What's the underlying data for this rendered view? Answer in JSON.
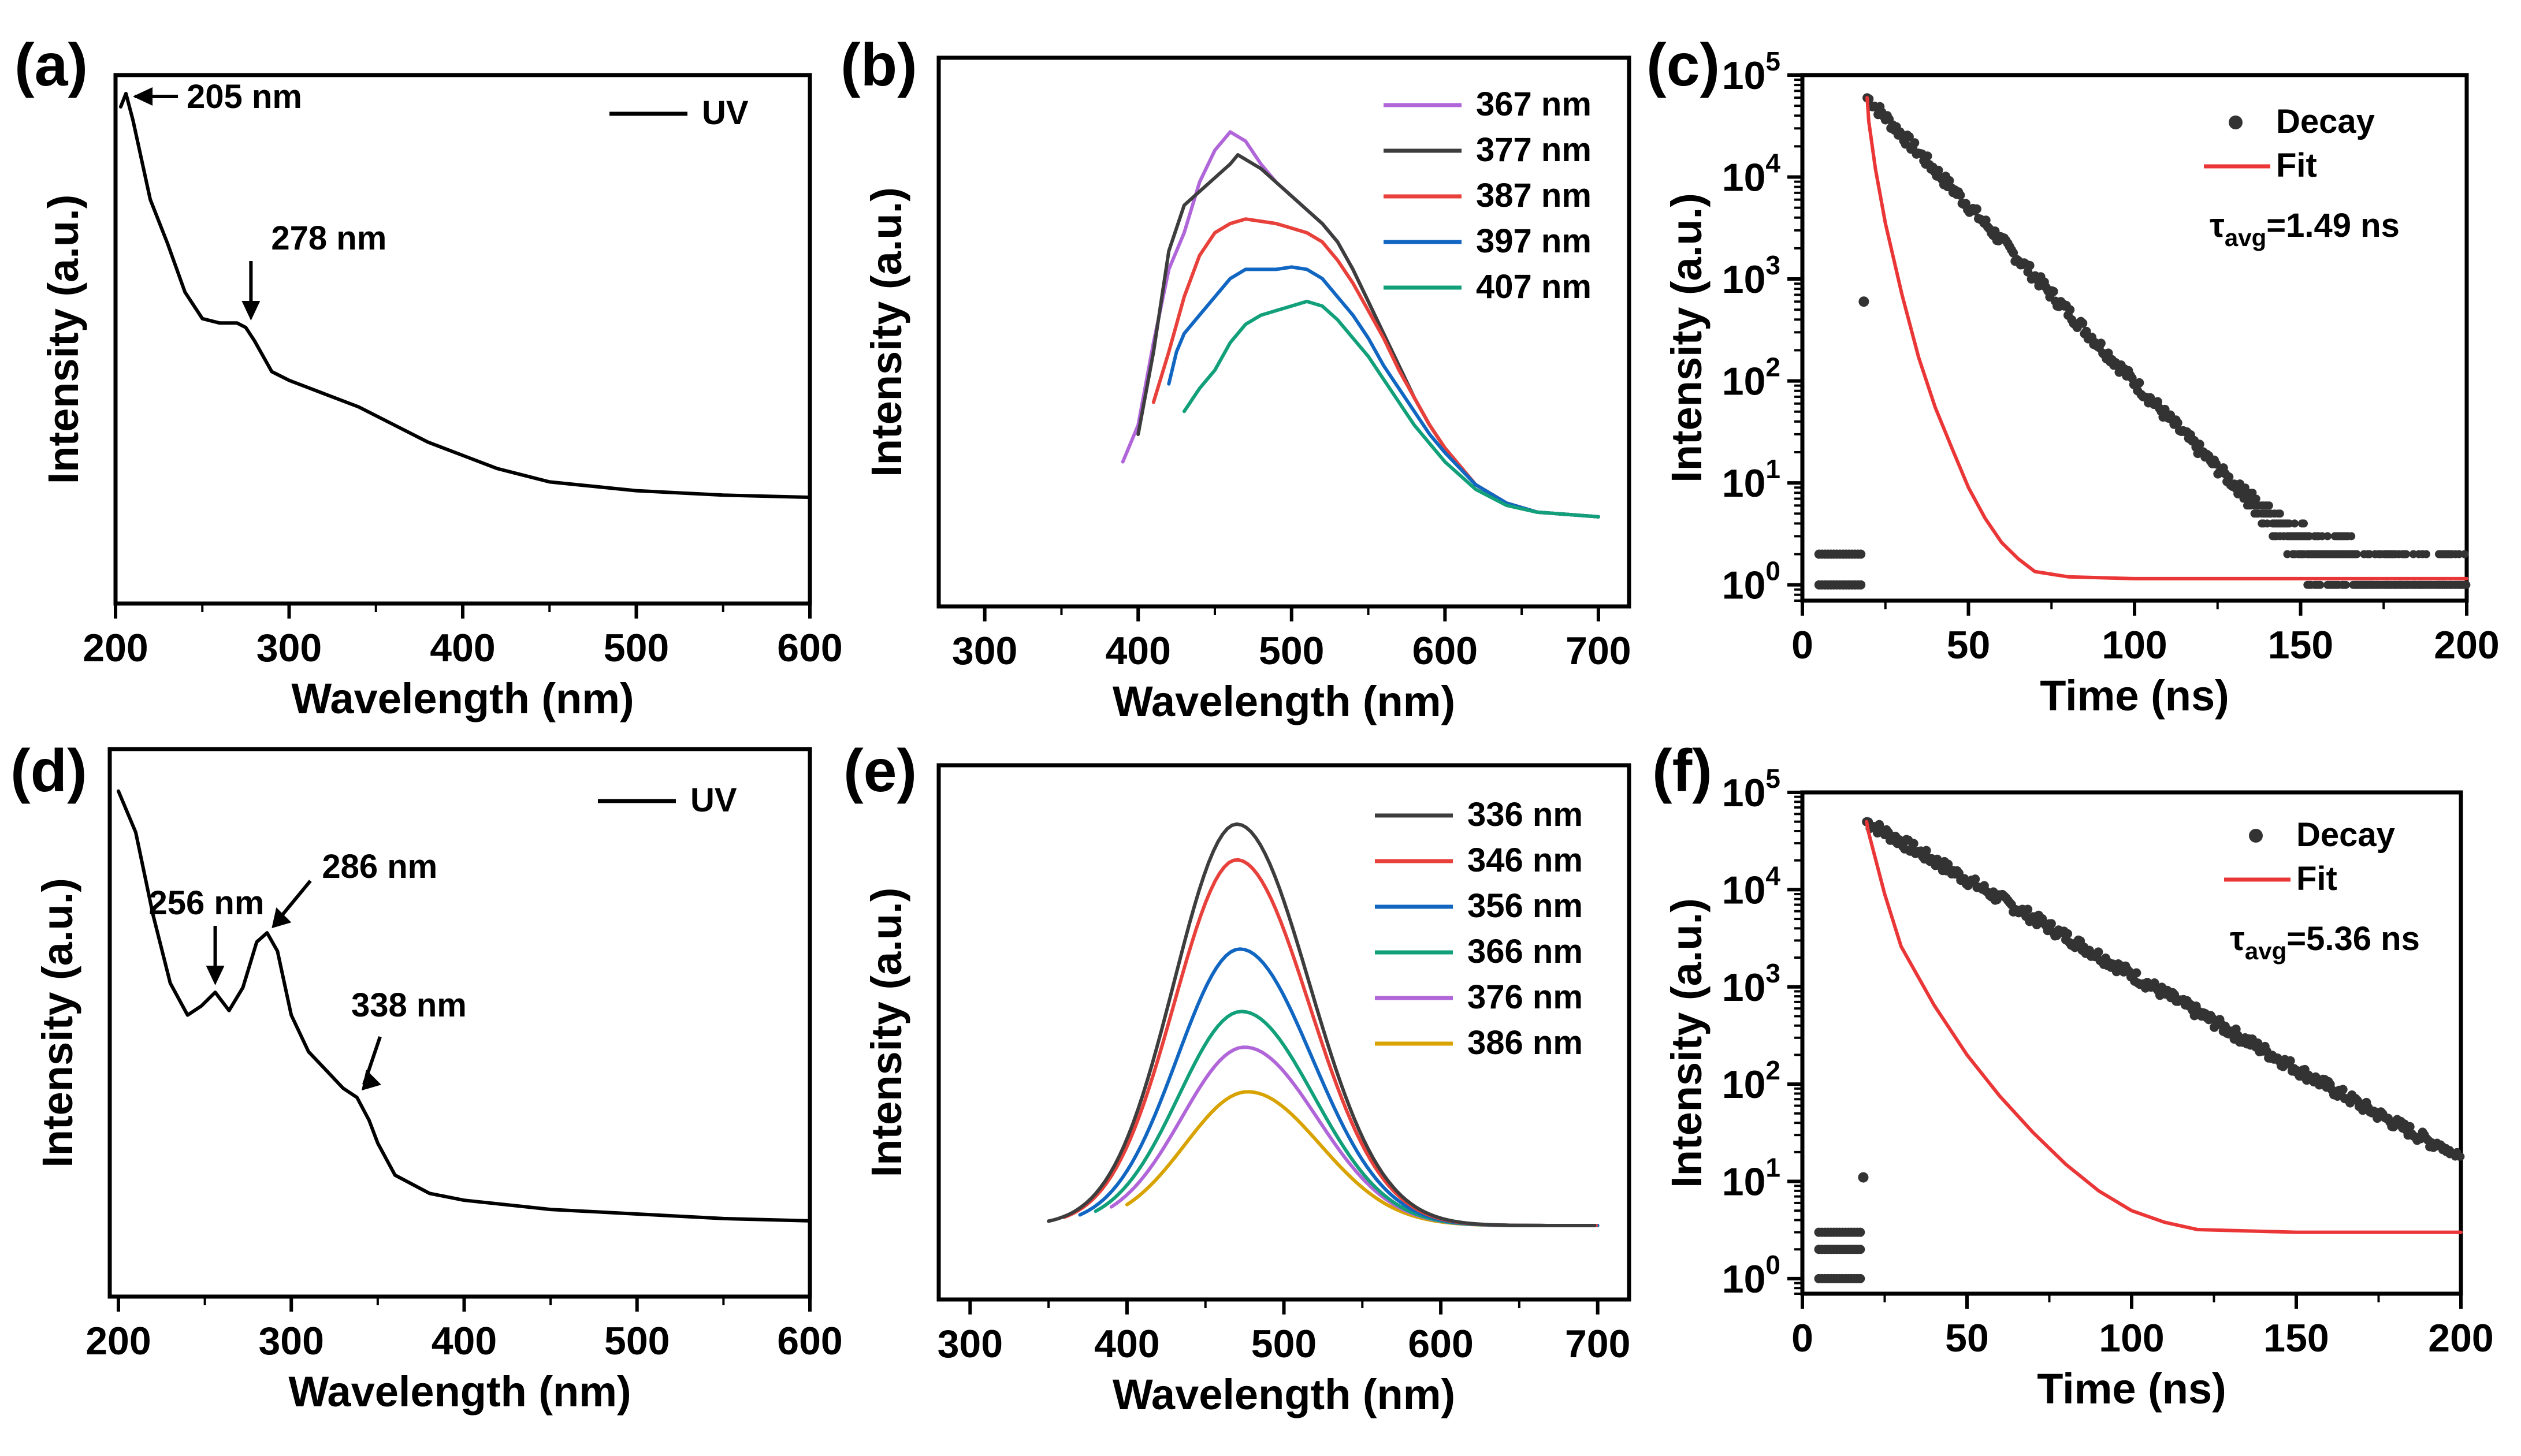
{
  "colors": {
    "uv": "#000000",
    "excitation": [
      "#b066d8",
      "#3d3d3d",
      "#e8403a",
      "#1166c2",
      "#12a07a",
      "#d8a300"
    ],
    "decay_marker": "#333333",
    "fit": "#ea3636"
  },
  "chart_data": [
    {
      "id": "a",
      "panel_label": "(a)",
      "type": "line",
      "xlabel": "Wavelength (nm)",
      "ylabel": "Intensity (a.u.)",
      "xlim": [
        200,
        600
      ],
      "xticks": [
        200,
        300,
        400,
        500,
        600
      ],
      "ylim": [
        0,
        1
      ],
      "legend": [
        {
          "name": "UV"
        }
      ],
      "series": [
        {
          "name": "UV",
          "x": [
            203,
            206,
            210,
            215,
            220,
            225,
            230,
            240,
            250,
            260,
            270,
            275,
            280,
            290,
            300,
            320,
            340,
            360,
            380,
            400,
            420,
            450,
            500,
            550,
            600
          ],
          "y": [
            0.97,
            1.0,
            0.94,
            0.85,
            0.76,
            0.71,
            0.66,
            0.55,
            0.49,
            0.48,
            0.48,
            0.47,
            0.44,
            0.37,
            0.35,
            0.32,
            0.29,
            0.25,
            0.21,
            0.18,
            0.15,
            0.12,
            0.1,
            0.09,
            0.085
          ]
        }
      ],
      "annotations": [
        {
          "text": "205 nm",
          "x": 206,
          "y": 1.0
        },
        {
          "text": "278 nm",
          "x": 278,
          "y": 0.47
        }
      ]
    },
    {
      "id": "b",
      "panel_label": "(b)",
      "type": "line",
      "xlabel": "Wavelength (nm)",
      "ylabel": "Intensity (a.u.)",
      "xlim": [
        270,
        720
      ],
      "xticks": [
        300,
        400,
        500,
        600,
        700
      ],
      "ylim": [
        0,
        1
      ],
      "legend": [
        {
          "name": "367 nm"
        },
        {
          "name": "377 nm"
        },
        {
          "name": "387 nm"
        },
        {
          "name": "397 nm"
        },
        {
          "name": "407 nm"
        }
      ],
      "series": [
        {
          "name": "367 nm",
          "x": [
            390,
            400,
            410,
            420,
            430,
            440,
            450,
            460,
            470,
            480,
            490,
            500,
            510,
            520,
            530,
            540,
            550,
            560,
            570,
            580,
            590,
            600,
            620,
            640,
            660,
            680,
            700
          ],
          "y": [
            0.16,
            0.24,
            0.42,
            0.58,
            0.66,
            0.77,
            0.84,
            0.88,
            0.86,
            0.81,
            0.77,
            0.74,
            0.71,
            0.68,
            0.64,
            0.58,
            0.51,
            0.44,
            0.37,
            0.3,
            0.24,
            0.19,
            0.11,
            0.07,
            0.05,
            0.045,
            0.04
          ]
        },
        {
          "name": "377 nm",
          "x": [
            400,
            410,
            420,
            430,
            440,
            450,
            460,
            465,
            470,
            480,
            490,
            500,
            510,
            520,
            530,
            540,
            550,
            560,
            570,
            580,
            590,
            600,
            620,
            640,
            660,
            680,
            700
          ],
          "y": [
            0.22,
            0.4,
            0.62,
            0.72,
            0.75,
            0.78,
            0.81,
            0.83,
            0.82,
            0.8,
            0.77,
            0.74,
            0.71,
            0.68,
            0.64,
            0.58,
            0.51,
            0.44,
            0.37,
            0.3,
            0.24,
            0.19,
            0.11,
            0.07,
            0.05,
            0.045,
            0.04
          ]
        },
        {
          "name": "387 nm",
          "x": [
            410,
            420,
            430,
            440,
            450,
            460,
            470,
            480,
            490,
            500,
            510,
            520,
            530,
            540,
            550,
            560,
            570,
            580,
            590,
            600,
            620,
            640,
            660,
            680,
            700
          ],
          "y": [
            0.29,
            0.4,
            0.52,
            0.61,
            0.66,
            0.68,
            0.69,
            0.685,
            0.68,
            0.67,
            0.66,
            0.64,
            0.6,
            0.55,
            0.49,
            0.43,
            0.36,
            0.3,
            0.24,
            0.19,
            0.11,
            0.07,
            0.05,
            0.045,
            0.04
          ]
        },
        {
          "name": "397 nm",
          "x": [
            420,
            425,
            430,
            440,
            450,
            460,
            470,
            480,
            490,
            500,
            510,
            520,
            530,
            540,
            550,
            560,
            570,
            580,
            590,
            600,
            620,
            640,
            660,
            680,
            700
          ],
          "y": [
            0.33,
            0.4,
            0.44,
            0.48,
            0.52,
            0.56,
            0.58,
            0.58,
            0.58,
            0.585,
            0.58,
            0.56,
            0.52,
            0.48,
            0.43,
            0.37,
            0.32,
            0.27,
            0.22,
            0.18,
            0.11,
            0.07,
            0.05,
            0.045,
            0.04
          ]
        },
        {
          "name": "407 nm",
          "x": [
            430,
            440,
            450,
            460,
            470,
            480,
            490,
            500,
            510,
            520,
            530,
            540,
            550,
            560,
            570,
            580,
            590,
            600,
            620,
            640,
            660,
            680,
            700
          ],
          "y": [
            0.27,
            0.32,
            0.36,
            0.42,
            0.46,
            0.48,
            0.49,
            0.5,
            0.51,
            0.5,
            0.47,
            0.43,
            0.39,
            0.34,
            0.29,
            0.24,
            0.2,
            0.16,
            0.1,
            0.065,
            0.05,
            0.045,
            0.04
          ]
        }
      ]
    },
    {
      "id": "c",
      "panel_label": "(c)",
      "type": "scatter",
      "yscale": "log",
      "xlabel": "Time (ns)",
      "ylabel": "Intensity (a.u.)",
      "xlim": [
        0,
        200
      ],
      "xticks": [
        0,
        50,
        100,
        150,
        200
      ],
      "ylim": [
        0.7,
        100000
      ],
      "ytick_values": [
        1,
        10,
        100,
        1000,
        10000,
        100000
      ],
      "yticks": [
        {
          "base": "10",
          "exp": "0"
        },
        {
          "base": "10",
          "exp": "1"
        },
        {
          "base": "10",
          "exp": "2"
        },
        {
          "base": "10",
          "exp": "3"
        },
        {
          "base": "10",
          "exp": "4"
        },
        {
          "base": "10",
          "exp": "5"
        }
      ],
      "legend": [
        {
          "name": "Decay"
        },
        {
          "name": "Fit"
        }
      ],
      "tau": {
        "symbol": "τ",
        "sub": "avg",
        "text": "=1.49 ns"
      },
      "decay": {
        "t0": 19.5,
        "peak": 60000,
        "fall": 0.08,
        "background": 1,
        "tau_ns": 1.49,
        "rise_start": 18.5,
        "rise_value": 600,
        "pre_counts": [
          1,
          2
        ]
      },
      "fit": {
        "x": [
          19.5,
          20,
          22,
          25,
          30,
          35,
          40,
          45,
          50,
          55,
          60,
          65,
          70,
          80,
          100,
          150,
          200
        ],
        "y": [
          60000,
          35000,
          12000,
          3500,
          700,
          170,
          55,
          22,
          9,
          4.5,
          2.6,
          1.8,
          1.35,
          1.2,
          1.15,
          1.15,
          1.15
        ]
      }
    },
    {
      "id": "d",
      "panel_label": "(d)",
      "type": "line",
      "xlabel": "Wavelength (nm)",
      "ylabel": "Intensity (a.u.)",
      "xlim": [
        195,
        600
      ],
      "xticks": [
        200,
        300,
        400,
        500,
        600
      ],
      "ylim": [
        0,
        1
      ],
      "legend": [
        {
          "name": "UV"
        }
      ],
      "series": [
        {
          "name": "UV",
          "x": [
            200,
            210,
            220,
            230,
            240,
            248,
            256,
            264,
            272,
            280,
            286,
            292,
            300,
            310,
            320,
            330,
            338,
            345,
            350,
            360,
            380,
            400,
            450,
            500,
            550,
            600
          ],
          "y": [
            0.95,
            0.86,
            0.68,
            0.53,
            0.46,
            0.48,
            0.51,
            0.47,
            0.52,
            0.62,
            0.64,
            0.6,
            0.46,
            0.38,
            0.34,
            0.3,
            0.28,
            0.23,
            0.18,
            0.11,
            0.07,
            0.055,
            0.035,
            0.025,
            0.015,
            0.01
          ]
        }
      ],
      "annotations": [
        {
          "text": "256 nm",
          "x": 256,
          "y": 0.51
        },
        {
          "text": "286 nm",
          "x": 286,
          "y": 0.64
        },
        {
          "text": "338 nm",
          "x": 338,
          "y": 0.28
        }
      ]
    },
    {
      "id": "e",
      "panel_label": "(e)",
      "type": "line",
      "xlabel": "Wavelength (nm)",
      "ylabel": "Intensity (a.u.)",
      "xlim": [
        280,
        720
      ],
      "xticks": [
        300,
        400,
        500,
        600,
        700
      ],
      "ylim": [
        0,
        1
      ],
      "legend": [
        {
          "name": "336 nm"
        },
        {
          "name": "346 nm"
        },
        {
          "name": "356 nm"
        },
        {
          "name": "366 nm"
        },
        {
          "name": "376 nm"
        },
        {
          "name": "386 nm"
        }
      ],
      "series": [
        {
          "name": "336 nm",
          "start": 350,
          "center": 470,
          "amplitude": 0.9,
          "width_left": 40,
          "width_right": 46
        },
        {
          "name": "346 nm",
          "start": 360,
          "center": 470,
          "amplitude": 0.82,
          "width_left": 40,
          "width_right": 46
        },
        {
          "name": "356 nm",
          "start": 370,
          "center": 472,
          "amplitude": 0.62,
          "width_left": 40,
          "width_right": 46
        },
        {
          "name": "366 nm",
          "start": 380,
          "center": 473,
          "amplitude": 0.48,
          "width_left": 40,
          "width_right": 46
        },
        {
          "name": "376 nm",
          "start": 390,
          "center": 475,
          "amplitude": 0.4,
          "width_left": 40,
          "width_right": 46
        },
        {
          "name": "386 nm",
          "start": 400,
          "center": 477,
          "amplitude": 0.3,
          "width_left": 40,
          "width_right": 46
        }
      ],
      "baseline": 0.01,
      "end": 700
    },
    {
      "id": "f",
      "panel_label": "(f)",
      "type": "scatter",
      "yscale": "log",
      "xlabel": "Time (ns)",
      "ylabel": "Intensity (a.u.)",
      "xlim": [
        0,
        200
      ],
      "xticks": [
        0,
        50,
        100,
        150,
        200
      ],
      "ylim": [
        0.7,
        100000
      ],
      "ytick_values": [
        1,
        10,
        100,
        1000,
        10000,
        100000
      ],
      "yticks": [
        {
          "base": "10",
          "exp": "0"
        },
        {
          "base": "10",
          "exp": "1"
        },
        {
          "base": "10",
          "exp": "2"
        },
        {
          "base": "10",
          "exp": "3"
        },
        {
          "base": "10",
          "exp": "4"
        },
        {
          "base": "10",
          "exp": "5"
        }
      ],
      "legend": [
        {
          "name": "Decay"
        },
        {
          "name": "Fit"
        }
      ],
      "tau": {
        "symbol": "τ",
        "sub": "avg",
        "text": "=5.36 ns"
      },
      "decay": {
        "t0": 19.5,
        "peak": 50000,
        "fall": 0.045,
        "background": 3,
        "tau_ns": 5.36,
        "rise_start": 18.5,
        "rise_value": 11,
        "pre_counts": [
          1,
          2,
          3
        ]
      },
      "fit": {
        "x": [
          19.5,
          20,
          25,
          30,
          40,
          50,
          60,
          70,
          80,
          90,
          100,
          110,
          120,
          150,
          200
        ],
        "y": [
          50000,
          40000,
          9000,
          2600,
          650,
          200,
          75,
          32,
          15,
          8,
          5,
          3.8,
          3.2,
          3,
          3
        ]
      }
    }
  ]
}
